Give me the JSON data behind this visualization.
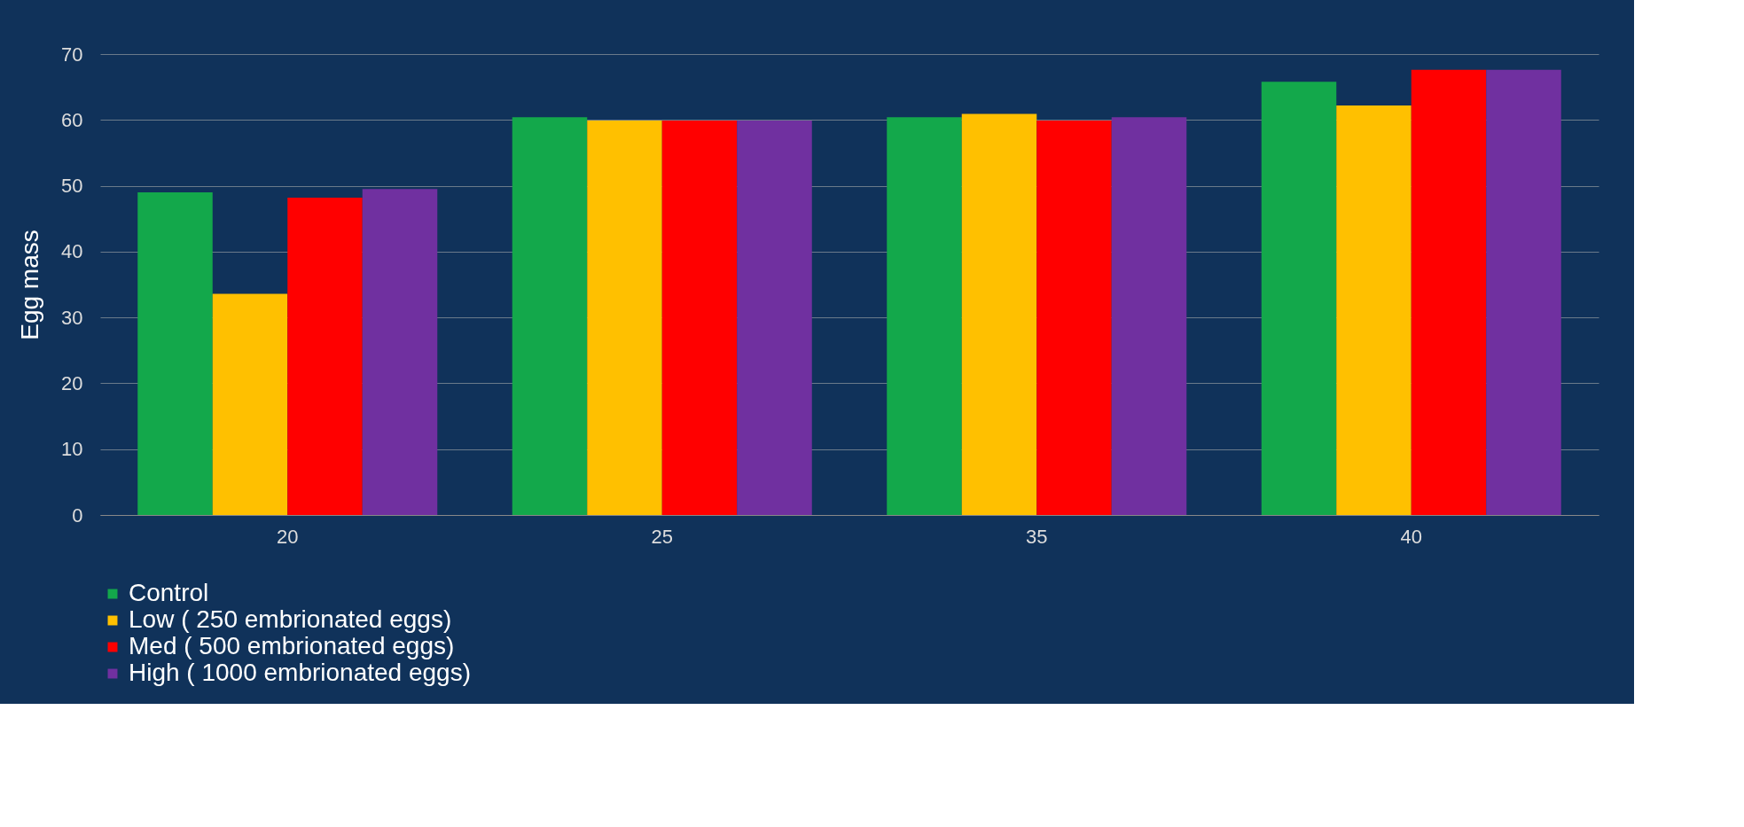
{
  "chart_data": {
    "type": "bar",
    "ylabel": "Egg mass",
    "categories": [
      "20",
      "25",
      "35",
      "40"
    ],
    "series": [
      {
        "name": "Control",
        "color": "#13a84b",
        "values": [
          49,
          60.4,
          60.4,
          65.8
        ]
      },
      {
        "name": "Low ( 250 embrionated eggs)",
        "color": "#ffc000",
        "values": [
          33.6,
          59.9,
          60.9,
          62.2
        ]
      },
      {
        "name": "Med  ( 500 embrionated eggs)",
        "color": "#ff0000",
        "values": [
          48.2,
          59.9,
          59.9,
          67.6
        ]
      },
      {
        "name": "High  ( 1000 embrionated eggs)",
        "color": "#7030a0",
        "values": [
          49.5,
          59.9,
          60.4,
          67.6
        ]
      }
    ],
    "ylim": [
      0,
      70
    ],
    "yticks": [
      0,
      10,
      20,
      30,
      40,
      50,
      60,
      70
    ],
    "grid": "y",
    "legend": "bottom"
  }
}
